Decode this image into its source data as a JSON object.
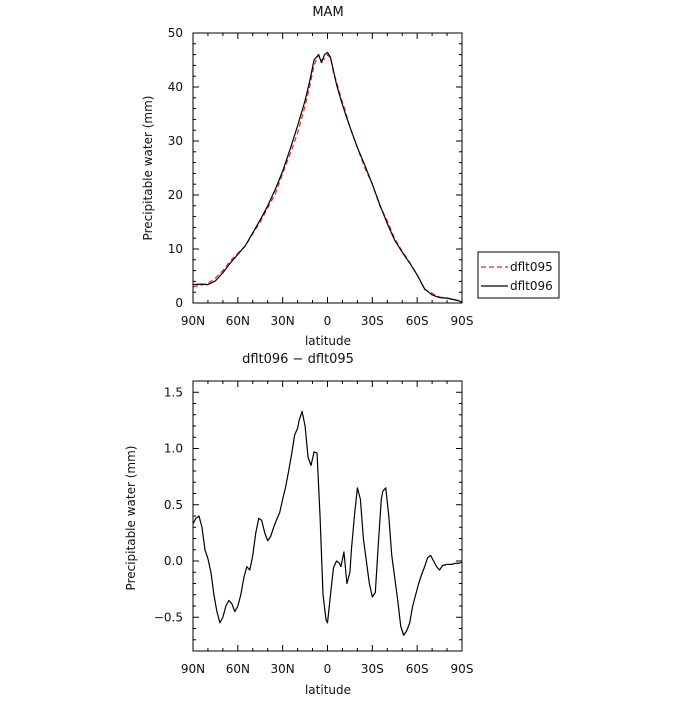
{
  "colors": {
    "series_a": "#e8251f",
    "series_b": "#000000",
    "axis": "#000000"
  },
  "chart_data": [
    {
      "type": "line",
      "title": "MAM",
      "xlabel": "latitude",
      "ylabel": "Precipitable water  (mm)",
      "x_direction": "north-to-south",
      "xlim": [
        90,
        -90
      ],
      "ylim": [
        0,
        50
      ],
      "xticks": [
        {
          "value": 90,
          "label": "90N"
        },
        {
          "value": 60,
          "label": "60N"
        },
        {
          "value": 30,
          "label": "30N"
        },
        {
          "value": 0,
          "label": "0"
        },
        {
          "value": -30,
          "label": "30S"
        },
        {
          "value": -60,
          "label": "60S"
        },
        {
          "value": -90,
          "label": "90S"
        }
      ],
      "yticks": [
        {
          "value": 0,
          "label": "0"
        },
        {
          "value": 10,
          "label": "10"
        },
        {
          "value": 20,
          "label": "20"
        },
        {
          "value": 30,
          "label": "30"
        },
        {
          "value": 40,
          "label": "40"
        },
        {
          "value": 50,
          "label": "50"
        }
      ],
      "grid": false,
      "legend_position": "right",
      "series": [
        {
          "name": "dflt095",
          "style": "dashed",
          "color": "#e8251f",
          "x": [
            90,
            85,
            80,
            75,
            70,
            65,
            60,
            55,
            50,
            45,
            40,
            35,
            30,
            25,
            20,
            15,
            12,
            9,
            6,
            4,
            2,
            0,
            -2,
            -4,
            -6,
            -9,
            -12,
            -15,
            -20,
            -25,
            -30,
            -35,
            -40,
            -45,
            -50,
            -55,
            -60,
            -65,
            -70,
            -75,
            -80,
            -85,
            -88,
            -90
          ],
          "y": [
            3.0,
            3.3,
            3.6,
            4.6,
            6.0,
            7.8,
            9.2,
            10.6,
            12.8,
            15.0,
            17.6,
            20.2,
            24.0,
            27.6,
            31.5,
            36.5,
            40.0,
            44.0,
            46.0,
            45.0,
            45.2,
            46.0,
            45.4,
            42.7,
            41.0,
            38.0,
            35.5,
            32.5,
            28.8,
            25.0,
            22.0,
            18.0,
            15.2,
            11.9,
            9.6,
            7.5,
            5.2,
            2.5,
            1.8,
            1.1,
            0.9,
            0.6,
            0.4,
            0.2
          ]
        },
        {
          "name": "dflt096",
          "style": "solid",
          "color": "#000000",
          "x": [
            90,
            85,
            80,
            75,
            70,
            65,
            60,
            55,
            50,
            45,
            40,
            35,
            30,
            25,
            20,
            15,
            12,
            9,
            6,
            4,
            2,
            0,
            -2,
            -4,
            -6,
            -9,
            -12,
            -15,
            -20,
            -25,
            -30,
            -35,
            -40,
            -45,
            -50,
            -55,
            -60,
            -65,
            -70,
            -75,
            -80,
            -85,
            -88,
            -90
          ],
          "y": [
            3.4,
            3.5,
            3.4,
            4.1,
            5.6,
            7.4,
            9.0,
            10.6,
            13.0,
            15.4,
            18.0,
            21.0,
            24.4,
            28.5,
            32.8,
            37.5,
            41.0,
            45.0,
            46.0,
            44.5,
            46.0,
            46.4,
            45.5,
            43.0,
            40.5,
            37.6,
            35.0,
            32.6,
            28.8,
            25.5,
            22.0,
            18.2,
            14.7,
            11.6,
            9.4,
            7.4,
            5.2,
            2.6,
            1.5,
            1.0,
            0.9,
            0.6,
            0.4,
            0.1
          ]
        }
      ]
    },
    {
      "type": "line",
      "title": "dflt096 − dflt095",
      "xlabel": "latitude",
      "ylabel": "Precipitable water  (mm)",
      "x_direction": "north-to-south",
      "xlim": [
        90,
        -90
      ],
      "ylim": [
        -0.8,
        1.6
      ],
      "xticks": [
        {
          "value": 90,
          "label": "90N"
        },
        {
          "value": 60,
          "label": "60N"
        },
        {
          "value": 30,
          "label": "30N"
        },
        {
          "value": 0,
          "label": "0"
        },
        {
          "value": -30,
          "label": "30S"
        },
        {
          "value": -60,
          "label": "60S"
        },
        {
          "value": -90,
          "label": "90S"
        }
      ],
      "yticks": [
        {
          "value": -0.5,
          "label": "−0.5"
        },
        {
          "value": 0,
          "label": "0.0"
        },
        {
          "value": 0.5,
          "label": "0.5"
        },
        {
          "value": 1.0,
          "label": "1.0"
        },
        {
          "value": 1.5,
          "label": "1.5"
        }
      ],
      "grid": false,
      "series": [
        {
          "name": "",
          "style": "solid",
          "color": "#000000",
          "x": [
            90,
            88,
            86,
            84,
            82,
            80,
            78,
            76,
            74,
            72,
            70,
            68,
            66,
            64,
            62,
            60,
            58,
            56,
            54,
            52,
            50,
            48,
            46,
            44,
            42,
            40,
            38,
            36,
            34,
            32,
            30,
            28,
            26,
            24,
            22,
            20,
            19,
            17,
            15,
            13,
            11,
            9,
            7,
            5,
            3,
            1,
            0,
            -2,
            -4,
            -6,
            -8,
            -9,
            -11,
            -13,
            -15,
            -16,
            -18,
            -20,
            -22,
            -24,
            -26,
            -28,
            -30,
            -32,
            -34,
            -36,
            -37,
            -39,
            -41,
            -43,
            -45,
            -47,
            -49,
            -51,
            -53,
            -55,
            -57,
            -59,
            -61,
            -63,
            -65,
            -67,
            -69,
            -71,
            -73,
            -75,
            -77,
            -80,
            -83,
            -86,
            -88,
            -90
          ],
          "y": [
            0.33,
            0.38,
            0.4,
            0.3,
            0.1,
            0.02,
            -0.1,
            -0.3,
            -0.45,
            -0.55,
            -0.5,
            -0.4,
            -0.35,
            -0.38,
            -0.45,
            -0.4,
            -0.3,
            -0.15,
            -0.05,
            -0.08,
            0.05,
            0.25,
            0.38,
            0.36,
            0.25,
            0.18,
            0.22,
            0.3,
            0.37,
            0.43,
            0.55,
            0.66,
            0.8,
            0.95,
            1.12,
            1.18,
            1.25,
            1.33,
            1.2,
            0.92,
            0.85,
            0.97,
            0.96,
            0.4,
            -0.3,
            -0.52,
            -0.55,
            -0.3,
            -0.06,
            0.0,
            -0.02,
            -0.05,
            0.08,
            -0.2,
            -0.1,
            0.1,
            0.4,
            0.65,
            0.55,
            0.2,
            0.0,
            -0.2,
            -0.32,
            -0.28,
            0.15,
            0.55,
            0.62,
            0.65,
            0.4,
            0.05,
            -0.15,
            -0.35,
            -0.58,
            -0.66,
            -0.62,
            -0.55,
            -0.4,
            -0.3,
            -0.2,
            -0.12,
            -0.05,
            0.03,
            0.05,
            0.0,
            -0.05,
            -0.08,
            -0.04,
            -0.03,
            -0.03,
            -0.02,
            -0.02,
            -0.01
          ]
        }
      ]
    }
  ]
}
